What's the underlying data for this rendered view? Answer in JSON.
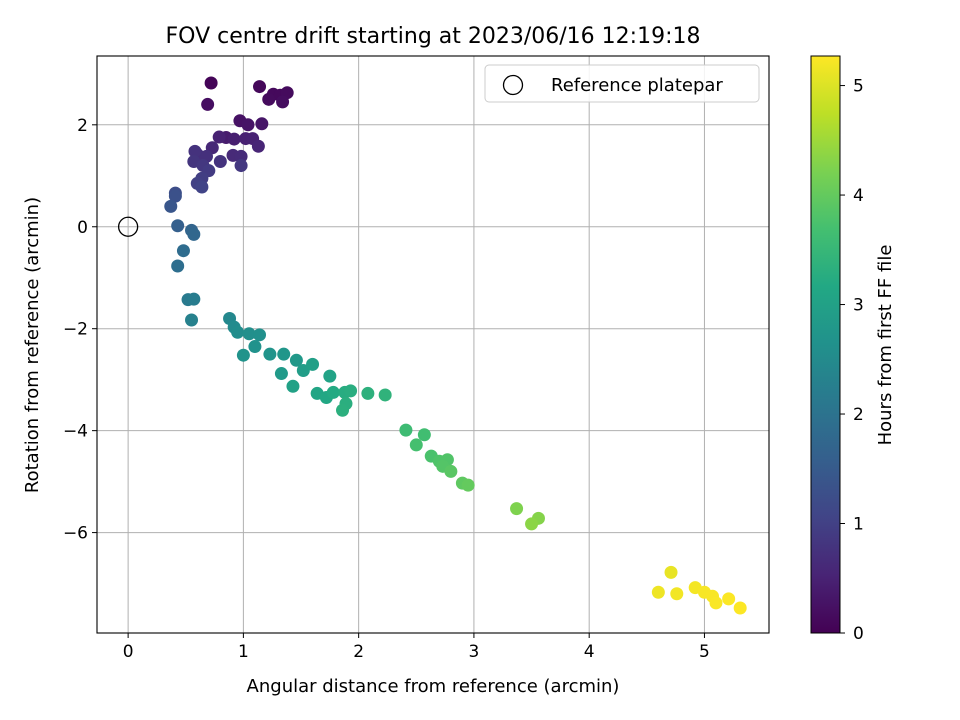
{
  "chart_data": {
    "type": "scatter",
    "title": "FOV centre drift starting at 2023/06/16 12:19:18",
    "xlabel": "Angular distance from reference (arcmin)",
    "ylabel": "Rotation from reference (arcmin)",
    "xlim": [
      -0.27,
      5.56
    ],
    "ylim": [
      -7.97,
      3.35
    ],
    "xticks": [
      0,
      1,
      2,
      3,
      4,
      5
    ],
    "yticks": [
      -6,
      -4,
      -2,
      0,
      2
    ],
    "grid": true,
    "legend": {
      "placement": "top-right",
      "entries": [
        "Reference platepar"
      ]
    },
    "reference_point": {
      "label": "Reference platepar",
      "x": 0,
      "y": 0
    },
    "colorbar": {
      "label": "Hours from first FF file",
      "range": [
        0,
        5.27
      ],
      "ticks": [
        0,
        1,
        2,
        3,
        4,
        5
      ],
      "colormap": "viridis"
    },
    "series": [
      {
        "points": [
          {
            "x": 0.72,
            "y": 2.82,
            "t": 0.05
          },
          {
            "x": 1.14,
            "y": 2.75,
            "t": 0.1
          },
          {
            "x": 1.26,
            "y": 2.6,
            "t": 0.12
          },
          {
            "x": 1.32,
            "y": 2.58,
            "t": 0.12
          },
          {
            "x": 1.38,
            "y": 2.63,
            "t": 0.15
          },
          {
            "x": 1.22,
            "y": 2.5,
            "t": 0.15
          },
          {
            "x": 1.34,
            "y": 2.45,
            "t": 0.18
          },
          {
            "x": 0.69,
            "y": 2.4,
            "t": 0.2
          },
          {
            "x": 0.97,
            "y": 2.08,
            "t": 0.25
          },
          {
            "x": 1.04,
            "y": 2.0,
            "t": 0.28
          },
          {
            "x": 1.16,
            "y": 2.02,
            "t": 0.3
          },
          {
            "x": 0.85,
            "y": 1.75,
            "t": 0.4
          },
          {
            "x": 0.92,
            "y": 1.72,
            "t": 0.45
          },
          {
            "x": 1.02,
            "y": 1.73,
            "t": 0.48
          },
          {
            "x": 0.79,
            "y": 1.76,
            "t": 0.5
          },
          {
            "x": 1.08,
            "y": 1.73,
            "t": 0.5
          },
          {
            "x": 1.13,
            "y": 1.58,
            "t": 0.55
          },
          {
            "x": 0.73,
            "y": 1.55,
            "t": 0.6
          },
          {
            "x": 0.91,
            "y": 1.4,
            "t": 0.62
          },
          {
            "x": 0.98,
            "y": 1.38,
            "t": 0.65
          },
          {
            "x": 0.6,
            "y": 1.42,
            "t": 0.7
          },
          {
            "x": 0.68,
            "y": 1.38,
            "t": 0.72
          },
          {
            "x": 0.58,
            "y": 1.48,
            "t": 0.75
          },
          {
            "x": 0.8,
            "y": 1.28,
            "t": 0.78
          },
          {
            "x": 0.57,
            "y": 1.28,
            "t": 0.8
          },
          {
            "x": 0.65,
            "y": 1.2,
            "t": 0.85
          },
          {
            "x": 0.98,
            "y": 1.2,
            "t": 0.85
          },
          {
            "x": 0.7,
            "y": 1.1,
            "t": 0.9
          },
          {
            "x": 0.64,
            "y": 0.95,
            "t": 0.95
          },
          {
            "x": 0.6,
            "y": 0.85,
            "t": 1.0
          },
          {
            "x": 0.64,
            "y": 0.78,
            "t": 1.05
          },
          {
            "x": 0.41,
            "y": 0.66,
            "t": 1.25
          },
          {
            "x": 0.41,
            "y": 0.6,
            "t": 1.3
          },
          {
            "x": 0.37,
            "y": 0.4,
            "t": 1.4
          },
          {
            "x": 0.43,
            "y": 0.02,
            "t": 1.6
          },
          {
            "x": 0.55,
            "y": -0.07,
            "t": 1.7
          },
          {
            "x": 0.57,
            "y": -0.15,
            "t": 1.75
          },
          {
            "x": 0.48,
            "y": -0.47,
            "t": 1.85
          },
          {
            "x": 0.43,
            "y": -0.77,
            "t": 1.9
          },
          {
            "x": 0.52,
            "y": -1.43,
            "t": 2.15
          },
          {
            "x": 0.57,
            "y": -1.42,
            "t": 2.2
          },
          {
            "x": 0.55,
            "y": -1.83,
            "t": 2.3
          },
          {
            "x": 0.88,
            "y": -1.8,
            "t": 2.45
          },
          {
            "x": 0.92,
            "y": -1.97,
            "t": 2.5
          },
          {
            "x": 0.95,
            "y": -2.07,
            "t": 2.55
          },
          {
            "x": 1.05,
            "y": -2.1,
            "t": 2.6
          },
          {
            "x": 1.14,
            "y": -2.12,
            "t": 2.62
          },
          {
            "x": 1.1,
            "y": -2.35,
            "t": 2.65
          },
          {
            "x": 1.0,
            "y": -2.52,
            "t": 2.68
          },
          {
            "x": 1.23,
            "y": -2.5,
            "t": 2.7
          },
          {
            "x": 1.35,
            "y": -2.5,
            "t": 2.75
          },
          {
            "x": 1.46,
            "y": -2.62,
            "t": 2.8
          },
          {
            "x": 1.33,
            "y": -2.88,
            "t": 2.85
          },
          {
            "x": 1.52,
            "y": -2.82,
            "t": 2.9
          },
          {
            "x": 1.6,
            "y": -2.7,
            "t": 2.95
          },
          {
            "x": 1.43,
            "y": -3.13,
            "t": 3.0
          },
          {
            "x": 1.75,
            "y": -2.93,
            "t": 3.05
          },
          {
            "x": 1.64,
            "y": -3.27,
            "t": 3.1
          },
          {
            "x": 1.72,
            "y": -3.35,
            "t": 3.15
          },
          {
            "x": 1.78,
            "y": -3.25,
            "t": 3.2
          },
          {
            "x": 1.88,
            "y": -3.25,
            "t": 3.25
          },
          {
            "x": 1.93,
            "y": -3.22,
            "t": 3.28
          },
          {
            "x": 1.89,
            "y": -3.47,
            "t": 3.3
          },
          {
            "x": 1.86,
            "y": -3.6,
            "t": 3.32
          },
          {
            "x": 2.08,
            "y": -3.27,
            "t": 3.35
          },
          {
            "x": 2.23,
            "y": -3.3,
            "t": 3.4
          },
          {
            "x": 2.41,
            "y": -3.99,
            "t": 3.6
          },
          {
            "x": 2.57,
            "y": -4.08,
            "t": 3.65
          },
          {
            "x": 2.5,
            "y": -4.28,
            "t": 3.7
          },
          {
            "x": 2.63,
            "y": -4.5,
            "t": 3.75
          },
          {
            "x": 2.7,
            "y": -4.6,
            "t": 3.8
          },
          {
            "x": 2.77,
            "y": -4.57,
            "t": 3.82
          },
          {
            "x": 2.73,
            "y": -4.7,
            "t": 3.85
          },
          {
            "x": 2.8,
            "y": -4.8,
            "t": 3.9
          },
          {
            "x": 2.9,
            "y": -5.03,
            "t": 3.95
          },
          {
            "x": 2.95,
            "y": -5.07,
            "t": 4.0
          },
          {
            "x": 3.37,
            "y": -5.53,
            "t": 4.25
          },
          {
            "x": 3.56,
            "y": -5.72,
            "t": 4.3
          },
          {
            "x": 3.5,
            "y": -5.83,
            "t": 4.35
          },
          {
            "x": 4.71,
            "y": -6.78,
            "t": 5.1
          },
          {
            "x": 4.6,
            "y": -7.17,
            "t": 5.15
          },
          {
            "x": 4.76,
            "y": -7.2,
            "t": 5.18
          },
          {
            "x": 4.92,
            "y": -7.08,
            "t": 5.2
          },
          {
            "x": 5.0,
            "y": -7.17,
            "t": 5.22
          },
          {
            "x": 5.07,
            "y": -7.25,
            "t": 5.23
          },
          {
            "x": 5.1,
            "y": -7.38,
            "t": 5.24
          },
          {
            "x": 5.21,
            "y": -7.3,
            "t": 5.25
          },
          {
            "x": 5.31,
            "y": -7.48,
            "t": 5.26
          }
        ]
      }
    ]
  }
}
